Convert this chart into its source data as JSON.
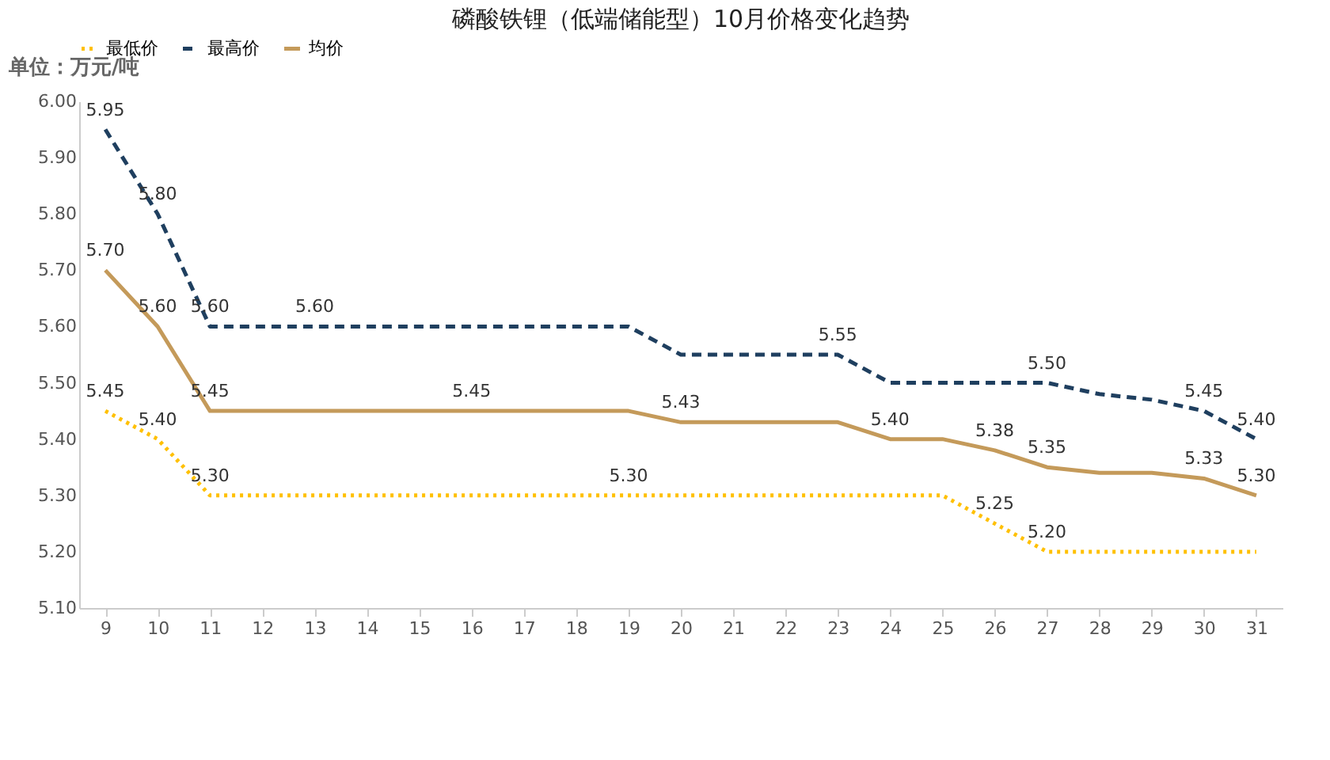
{
  "chart_data": {
    "type": "line",
    "title": "磷酸铁锂（低端储能型）10月价格变化趋势",
    "ylabel": "单位：万元/吨",
    "categories": [
      "9",
      "10",
      "11",
      "12",
      "13",
      "14",
      "15",
      "16",
      "17",
      "18",
      "19",
      "20",
      "21",
      "22",
      "23",
      "24",
      "25",
      "26",
      "27",
      "28",
      "29",
      "30",
      "31"
    ],
    "series": [
      {
        "name": "最低价",
        "color": "#ffc000",
        "line_style": "dotted",
        "values": [
          5.45,
          5.4,
          5.3,
          5.3,
          5.3,
          5.3,
          5.3,
          5.3,
          5.3,
          5.3,
          5.3,
          5.3,
          5.3,
          5.3,
          5.3,
          5.3,
          5.3,
          5.25,
          5.2,
          5.2,
          5.2,
          5.2,
          5.2
        ],
        "value_labels": [
          "5.45",
          "5.40",
          "5.30",
          null,
          null,
          null,
          null,
          null,
          null,
          null,
          "5.30",
          null,
          null,
          null,
          null,
          null,
          null,
          "5.25",
          "5.20",
          null,
          null,
          null,
          null
        ]
      },
      {
        "name": "最高价",
        "color": "#1f3f5f",
        "line_style": "dashed",
        "values": [
          5.95,
          5.8,
          5.6,
          5.6,
          5.6,
          5.6,
          5.6,
          5.6,
          5.6,
          5.6,
          5.6,
          5.55,
          5.55,
          5.55,
          5.55,
          5.5,
          5.5,
          5.5,
          5.5,
          5.48,
          5.47,
          5.45,
          5.4
        ],
        "value_labels": [
          "5.95",
          "5.80",
          "5.60",
          null,
          "5.60",
          null,
          null,
          null,
          null,
          null,
          null,
          null,
          null,
          null,
          "5.55",
          null,
          null,
          null,
          "5.50",
          null,
          null,
          "5.45",
          "5.40"
        ]
      },
      {
        "name": "均价",
        "color": "#c49a5a",
        "line_style": "solid",
        "values": [
          5.7,
          5.6,
          5.45,
          5.45,
          5.45,
          5.45,
          5.45,
          5.45,
          5.45,
          5.45,
          5.45,
          5.43,
          5.43,
          5.43,
          5.43,
          5.4,
          5.4,
          5.38,
          5.35,
          5.34,
          5.34,
          5.33,
          5.3
        ],
        "value_labels": [
          "5.70",
          "5.60",
          "5.45",
          null,
          null,
          null,
          null,
          "5.45",
          null,
          null,
          null,
          "5.43",
          null,
          null,
          null,
          "5.40",
          null,
          "5.38",
          "5.35",
          null,
          null,
          "5.33",
          "5.30"
        ]
      }
    ],
    "ylim": [
      5.1,
      6.0
    ],
    "yticks": [
      {
        "value": 5.1,
        "label": "5.10"
      },
      {
        "value": 5.2,
        "label": "5.20"
      },
      {
        "value": 5.3,
        "label": "5.30"
      },
      {
        "value": 5.4,
        "label": "5.40"
      },
      {
        "value": 5.5,
        "label": "5.50"
      },
      {
        "value": 5.6,
        "label": "5.60"
      },
      {
        "value": 5.7,
        "label": "5.70"
      },
      {
        "value": 5.8,
        "label": "5.80"
      },
      {
        "value": 5.9,
        "label": "5.90"
      },
      {
        "value": 6.0,
        "label": "6.00"
      }
    ],
    "grid": false,
    "legend": "top",
    "marker": "none"
  }
}
